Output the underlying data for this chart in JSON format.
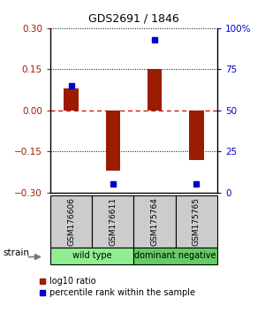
{
  "title": "GDS2691 / 1846",
  "samples": [
    "GSM176606",
    "GSM176611",
    "GSM175764",
    "GSM175765"
  ],
  "log10_ratio": [
    0.08,
    -0.22,
    0.15,
    -0.18
  ],
  "percentile_rank": [
    65,
    5,
    93,
    5
  ],
  "groups": [
    {
      "label": "wild type",
      "samples": [
        0,
        1
      ],
      "color": "#90EE90"
    },
    {
      "label": "dominant negative",
      "samples": [
        2,
        3
      ],
      "color": "#66CC66"
    }
  ],
  "ylim_left": [
    -0.3,
    0.3
  ],
  "ylim_right": [
    0,
    100
  ],
  "yticks_left": [
    -0.3,
    -0.15,
    0,
    0.15,
    0.3
  ],
  "yticks_right": [
    0,
    25,
    50,
    75,
    100
  ],
  "ytick_labels_right": [
    "0",
    "25",
    "50",
    "75",
    "100%"
  ],
  "bar_color": "#9B1C00",
  "dot_color": "#0000CC",
  "zero_line_color": "#CC0000",
  "grid_color": "#000000",
  "strain_label": "strain",
  "legend_ratio_label": "log10 ratio",
  "legend_pct_label": "percentile rank within the sample",
  "sample_box_color": "#CCCCCC",
  "group_colors": [
    "#90EE90",
    "#66CC66"
  ]
}
